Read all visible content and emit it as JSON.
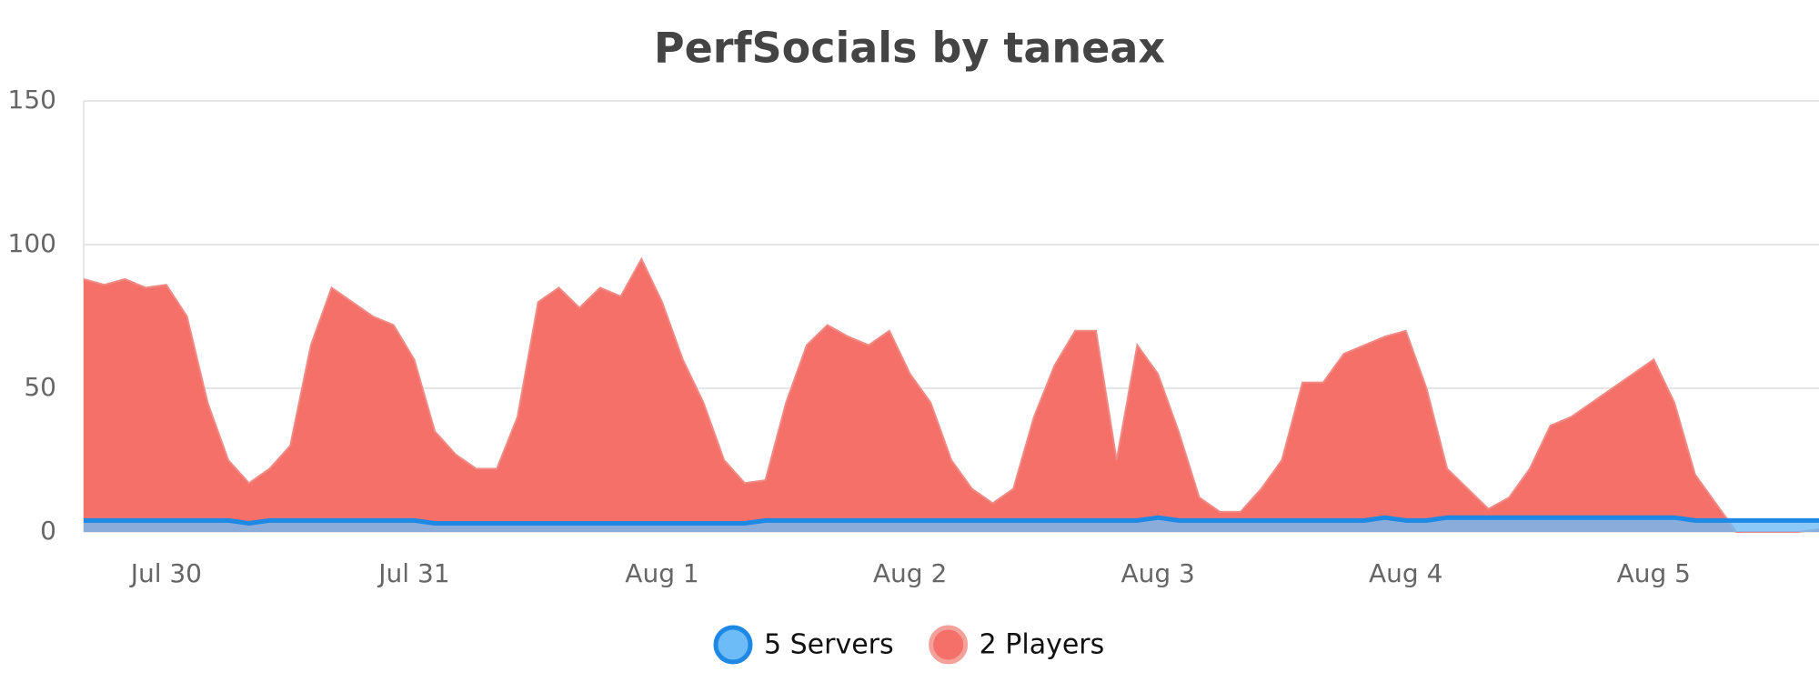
{
  "chart_data": {
    "type": "area",
    "title": "PerfSocials by taneax",
    "categories": [
      null,
      null,
      null,
      null,
      "Jul 30",
      null,
      null,
      null,
      null,
      null,
      null,
      null,
      null,
      null,
      null,
      null,
      "Jul 31",
      null,
      null,
      null,
      null,
      null,
      null,
      null,
      null,
      null,
      null,
      null,
      "Aug 1",
      null,
      null,
      null,
      null,
      null,
      null,
      null,
      null,
      null,
      null,
      null,
      "Aug 2",
      null,
      null,
      null,
      null,
      null,
      null,
      null,
      null,
      null,
      null,
      null,
      "Aug 3",
      null,
      null,
      null,
      null,
      null,
      null,
      null,
      null,
      null,
      null,
      null,
      "Aug 4",
      null,
      null,
      null,
      null,
      null,
      null,
      null,
      null,
      null,
      null,
      null,
      "Aug 5",
      null,
      null,
      null,
      null,
      null,
      null,
      null,
      null
    ],
    "series": [
      {
        "name": "2 Players",
        "color": "#f47068",
        "values": [
          88,
          86,
          88,
          85,
          86,
          75,
          45,
          25,
          17,
          22,
          30,
          65,
          85,
          80,
          75,
          72,
          60,
          35,
          27,
          22,
          22,
          40,
          80,
          85,
          78,
          85,
          82,
          95,
          80,
          60,
          45,
          25,
          17,
          18,
          45,
          65,
          72,
          68,
          65,
          70,
          55,
          45,
          25,
          15,
          10,
          15,
          40,
          58,
          70,
          70,
          25,
          65,
          55,
          35,
          12,
          7,
          7,
          15,
          25,
          52,
          52,
          62,
          65,
          68,
          70,
          50,
          22,
          15,
          8,
          12,
          22,
          37,
          40,
          45,
          50,
          55,
          60,
          45,
          20,
          10,
          0,
          0,
          0,
          0,
          1
        ]
      },
      {
        "name": "5 Servers",
        "color": "#1e88e5",
        "values": [
          4,
          4,
          4,
          4,
          4,
          4,
          4,
          4,
          3,
          4,
          4,
          4,
          4,
          4,
          4,
          4,
          4,
          3,
          3,
          3,
          3,
          3,
          3,
          3,
          3,
          3,
          3,
          3,
          3,
          3,
          3,
          3,
          3,
          4,
          4,
          4,
          4,
          4,
          4,
          4,
          4,
          4,
          4,
          4,
          4,
          4,
          4,
          4,
          4,
          4,
          4,
          4,
          5,
          4,
          4,
          4,
          4,
          4,
          4,
          4,
          4,
          4,
          4,
          5,
          4,
          4,
          5,
          5,
          5,
          5,
          5,
          5,
          5,
          5,
          5,
          5,
          5,
          5,
          4,
          4,
          4,
          4,
          4,
          4,
          4
        ]
      }
    ],
    "ylim": [
      0,
      150
    ],
    "yticks": [
      0,
      50,
      100,
      150
    ],
    "grid": true,
    "legend": "bottom"
  }
}
